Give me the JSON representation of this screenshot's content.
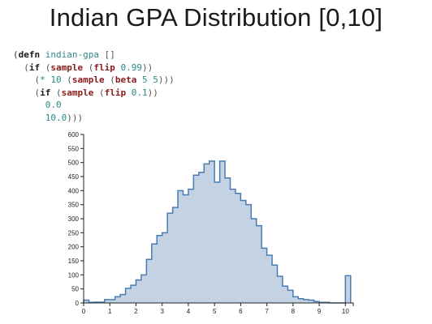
{
  "title": "Indian GPA Distribution [0,10]",
  "code_lines": [
    [
      [
        "paren",
        "("
      ],
      [
        "kw",
        "defn"
      ],
      [
        "t",
        " "
      ],
      [
        "sym",
        "indian-gpa"
      ],
      [
        "t",
        " []"
      ]
    ],
    [
      [
        "t",
        "  ("
      ],
      [
        "kw",
        "if"
      ],
      [
        "t",
        " ("
      ],
      [
        "fn",
        "sample"
      ],
      [
        "t",
        " ("
      ],
      [
        "fn",
        "flip"
      ],
      [
        "t",
        " "
      ],
      [
        "nm",
        "0.99"
      ],
      [
        "t",
        "))"
      ]
    ],
    [
      [
        "t",
        "    ("
      ],
      [
        "nm",
        "*"
      ],
      [
        "t",
        " "
      ],
      [
        "nm",
        "10"
      ],
      [
        "t",
        " ("
      ],
      [
        "fn",
        "sample"
      ],
      [
        "t",
        " ("
      ],
      [
        "fn",
        "beta"
      ],
      [
        "t",
        " "
      ],
      [
        "nm",
        "5"
      ],
      [
        "t",
        " "
      ],
      [
        "nm",
        "5"
      ],
      [
        "t",
        ")))"
      ]
    ],
    [
      [
        "t",
        "    ("
      ],
      [
        "kw",
        "if"
      ],
      [
        "t",
        " ("
      ],
      [
        "fn",
        "sample"
      ],
      [
        "t",
        " ("
      ],
      [
        "fn",
        "flip"
      ],
      [
        "t",
        " "
      ],
      [
        "nm",
        "0.1"
      ],
      [
        "t",
        "))"
      ]
    ],
    [
      [
        "t",
        "      "
      ],
      [
        "nm",
        "0.0"
      ]
    ],
    [
      [
        "t",
        "      "
      ],
      [
        "nm",
        "10.0"
      ],
      [
        "t",
        ")))"
      ]
    ]
  ],
  "chart_data": {
    "type": "histogram",
    "bin_start": 0,
    "bin_width": 0.2,
    "values": [
      10,
      2,
      3,
      3,
      12,
      12,
      22,
      30,
      52,
      63,
      82,
      100,
      155,
      210,
      240,
      250,
      320,
      340,
      400,
      385,
      405,
      455,
      465,
      495,
      505,
      430,
      505,
      445,
      405,
      390,
      365,
      350,
      300,
      275,
      195,
      170,
      135,
      95,
      60,
      45,
      22,
      15,
      12,
      10,
      5,
      2,
      2,
      0,
      0,
      0,
      97
    ],
    "xlim": [
      0,
      10.3
    ],
    "ylim": [
      0,
      600
    ],
    "x_ticks": [
      0,
      1,
      2,
      3,
      4,
      5,
      6,
      7,
      8,
      9,
      10
    ],
    "y_ticks": [
      0,
      50,
      100,
      150,
      200,
      250,
      300,
      350,
      400,
      450,
      500,
      550,
      600
    ],
    "fill_color": "#c3d3e4",
    "stroke_color": "#4a7bb0",
    "xlabel": "",
    "ylabel": ""
  }
}
